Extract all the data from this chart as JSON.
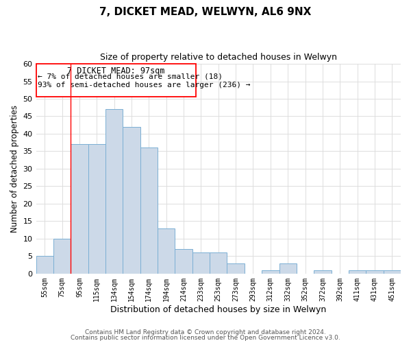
{
  "title": "7, DICKET MEAD, WELWYN, AL6 9NX",
  "subtitle": "Size of property relative to detached houses in Welwyn",
  "xlabel": "Distribution of detached houses by size in Welwyn",
  "ylabel": "Number of detached properties",
  "bar_color": "#ccd9e8",
  "bar_edge_color": "#7bafd4",
  "categories": [
    "55sqm",
    "75sqm",
    "95sqm",
    "115sqm",
    "134sqm",
    "154sqm",
    "174sqm",
    "194sqm",
    "214sqm",
    "233sqm",
    "253sqm",
    "273sqm",
    "293sqm",
    "312sqm",
    "332sqm",
    "352sqm",
    "372sqm",
    "392sqm",
    "411sqm",
    "431sqm",
    "451sqm"
  ],
  "values": [
    5,
    10,
    37,
    37,
    47,
    42,
    36,
    13,
    7,
    6,
    6,
    3,
    0,
    1,
    3,
    0,
    1,
    0,
    1,
    1,
    1
  ],
  "ylim": [
    0,
    60
  ],
  "yticks": [
    0,
    5,
    10,
    15,
    20,
    25,
    30,
    35,
    40,
    45,
    50,
    55,
    60
  ],
  "annotation_title": "7 DICKET MEAD: 97sqm",
  "annotation_line1": "← 7% of detached houses are smaller (18)",
  "annotation_line2": "93% of semi-detached houses are larger (236) →",
  "footer_line1": "Contains HM Land Registry data © Crown copyright and database right 2024.",
  "footer_line2": "Contains public sector information licensed under the Open Government Licence v3.0.",
  "background_color": "#ffffff",
  "grid_color": "#dddddd",
  "red_line_index": 1.5
}
